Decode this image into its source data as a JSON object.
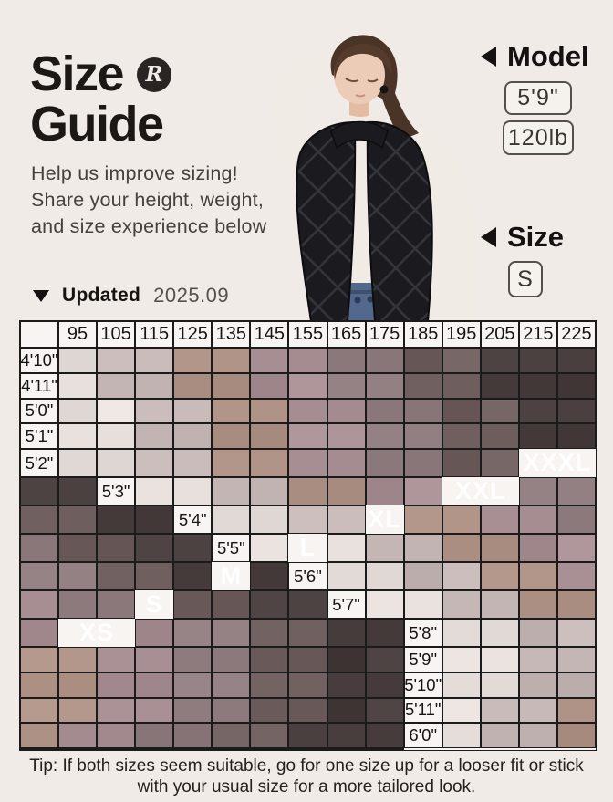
{
  "colors": {
    "page_bg": "#f0ebe7",
    "grid_line": "#1b1b1b",
    "header_bg": "#f7f4f1",
    "label_text": "#ffffff",
    "heading_text": "#141110"
  },
  "header": {
    "title_line1": "Size",
    "title_line2": "Guide",
    "logo_letter": "R",
    "intro_lines": [
      "Help us improve sizing!",
      "Share your height, weight,",
      "and size experience below"
    ]
  },
  "model_panel": {
    "model_heading": "Model",
    "height": "5'9\"",
    "weight": "120lb",
    "size_heading": "Size",
    "size_value": "S"
  },
  "updated": {
    "label": "Updated",
    "value": "2025.09"
  },
  "chart_data": {
    "type": "heatmap",
    "title": "Size Guide",
    "columns": [
      "95",
      "105",
      "115",
      "125",
      "135",
      "145",
      "155",
      "165",
      "175",
      "185",
      "195",
      "205",
      "215",
      "225"
    ],
    "rows": [
      "4'10\"",
      "4'11\"",
      "5'0\"",
      "5'1\"",
      "5'2\"",
      "5'3\"",
      "5'4\"",
      "5'5\"",
      "5'6\"",
      "5'7\"",
      "5'8\"",
      "5'9\"",
      "5'10\"",
      "5'11\"",
      "6'0\""
    ],
    "sizes": [
      "XS",
      "S",
      "M",
      "L",
      "XL",
      "XXL",
      "XXXL"
    ],
    "band_colors": [
      "#e7dfdb",
      "#c3b6b4",
      "#ae9286",
      "#a68e92",
      "#8e7c7f",
      "#6e5e5d",
      "#463c3b"
    ],
    "row_shifts": [
      0,
      0,
      1,
      1,
      1,
      1,
      1,
      1,
      1,
      1,
      1,
      1,
      1,
      0,
      0
    ],
    "band_patterns": [
      [
        0,
        1,
        1,
        2,
        2,
        3,
        3,
        4,
        4,
        5,
        5,
        6,
        6,
        6
      ],
      [
        0,
        0,
        1,
        1,
        2,
        2,
        3,
        3,
        4,
        4,
        5,
        5,
        6,
        6
      ]
    ],
    "size_labels": [
      {
        "text": "XS",
        "row": 10,
        "col": 0,
        "span": 2
      },
      {
        "text": "S",
        "row": 9,
        "col": 2,
        "span": 1
      },
      {
        "text": "M",
        "row": 8,
        "col": 4,
        "span": 1
      },
      {
        "text": "L",
        "row": 7,
        "col": 6,
        "span": 1
      },
      {
        "text": "XL",
        "row": 6,
        "col": 8,
        "span": 1
      },
      {
        "text": "XXL",
        "row": 5,
        "col": 10,
        "span": 2
      },
      {
        "text": "XXXL",
        "row": 4,
        "col": 12,
        "span": 2
      }
    ]
  },
  "tip": {
    "line1": "Tip: If both sizes seem suitable, go for one size up for a looser fit or stick",
    "line2": "with your usual size for a more tailored look."
  }
}
